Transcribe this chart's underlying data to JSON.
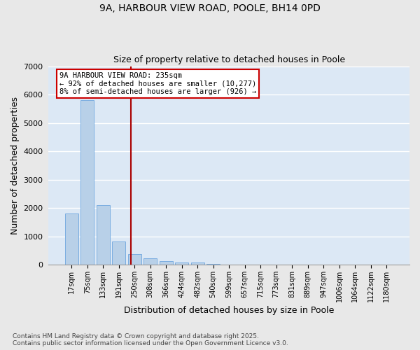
{
  "title_line1": "9A, HARBOUR VIEW ROAD, POOLE, BH14 0PD",
  "title_line2": "Size of property relative to detached houses in Poole",
  "xlabel": "Distribution of detached houses by size in Poole",
  "ylabel": "Number of detached properties",
  "bar_color": "#b8d0e8",
  "bar_edge_color": "#7aade0",
  "background_color": "#dce8f5",
  "fig_background_color": "#e8e8e8",
  "grid_color": "#ffffff",
  "annotation_text": "9A HARBOUR VIEW ROAD: 235sqm\n← 92% of detached houses are smaller (10,277)\n8% of semi-detached houses are larger (926) →",
  "vline_color": "#aa0000",
  "categories": [
    "17sqm",
    "75sqm",
    "133sqm",
    "191sqm",
    "250sqm",
    "308sqm",
    "366sqm",
    "424sqm",
    "482sqm",
    "540sqm",
    "599sqm",
    "657sqm",
    "715sqm",
    "773sqm",
    "831sqm",
    "889sqm",
    "947sqm",
    "1006sqm",
    "1064sqm",
    "1122sqm",
    "1180sqm"
  ],
  "bar_heights": [
    1800,
    5800,
    2100,
    830,
    370,
    230,
    130,
    90,
    80,
    35,
    0,
    0,
    0,
    0,
    0,
    0,
    0,
    0,
    0,
    0,
    0
  ],
  "ylim": [
    0,
    7000
  ],
  "yticks": [
    0,
    1000,
    2000,
    3000,
    4000,
    5000,
    6000,
    7000
  ],
  "footer_text": "Contains HM Land Registry data © Crown copyright and database right 2025.\nContains public sector information licensed under the Open Government Licence v3.0."
}
